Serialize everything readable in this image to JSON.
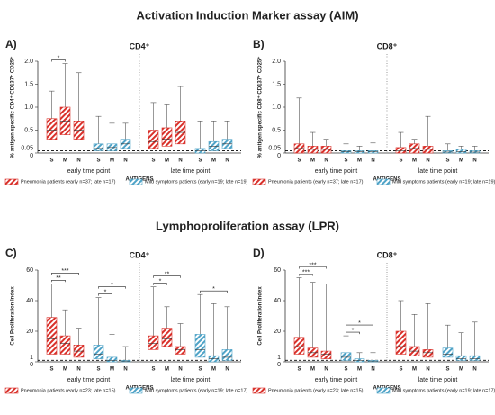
{
  "sections": [
    {
      "title": "Activation Induction Marker assay (AIM)"
    },
    {
      "title": "Lymphoproliferation assay (LPR)"
    }
  ],
  "chart_data": [
    {
      "type": "box",
      "panel": "A)",
      "title": "CD4⁺",
      "ylabel": "% antigen specific CD4⁺ CD137⁺ CD25⁺",
      "xlabel": "ANTIGENS",
      "time_points": [
        "early time point",
        "late time point"
      ],
      "categories": [
        "S",
        "M",
        "N"
      ],
      "ylim": [
        0,
        2
      ],
      "yticks": [
        0,
        {
          "value": 0.5,
          "label": "0.5"
        },
        {
          "value": 1,
          "label": "1.0"
        },
        {
          "value": 1.5,
          "label": "1.5"
        },
        {
          "value": 2,
          "label": "2.0"
        }
      ],
      "threshold": {
        "value": 0.05,
        "label": "0.05"
      },
      "series": [
        {
          "name": "Pneumonia patients (early n=37; late n=17)",
          "color": "#d9312b",
          "boxes": [
            [
              {
                "q1": 0.3,
                "median": 0.5,
                "q3": 0.75,
                "max": 1.35
              },
              {
                "q1": 0.4,
                "median": 0.7,
                "q3": 1.0,
                "max": 1.95
              },
              {
                "q1": 0.3,
                "median": 0.5,
                "q3": 0.7,
                "max": 1.75
              }
            ],
            [
              {
                "q1": 0.1,
                "median": 0.25,
                "q3": 0.5,
                "max": 1.1
              },
              {
                "q1": 0.15,
                "median": 0.3,
                "q3": 0.55,
                "max": 1.05
              },
              {
                "q1": 0.2,
                "median": 0.45,
                "q3": 0.7,
                "max": 1.45
              }
            ]
          ]
        },
        {
          "name": "Mild symptoms patients (early n=19; late n=19)",
          "color": "#4fa3c7",
          "boxes": [
            [
              {
                "q1": 0.05,
                "median": 0.1,
                "q3": 0.2,
                "max": 0.8
              },
              {
                "q1": 0.05,
                "median": 0.12,
                "q3": 0.2,
                "max": 0.65
              },
              {
                "q1": 0.1,
                "median": 0.2,
                "q3": 0.3,
                "max": 0.65
              }
            ],
            [
              {
                "q1": 0,
                "median": 0.05,
                "q3": 0.1,
                "max": 0.7
              },
              {
                "q1": 0.05,
                "median": 0.15,
                "q3": 0.25,
                "max": 0.7
              },
              {
                "q1": 0.1,
                "median": 0.2,
                "q3": 0.3,
                "max": 0.7
              }
            ]
          ]
        }
      ],
      "significance": [
        {
          "group": 0,
          "series": 0,
          "from": 0,
          "to": 1,
          "label": "*"
        }
      ]
    },
    {
      "type": "box",
      "panel": "B)",
      "title": "CD8⁺",
      "ylabel": "% antigen specific CD8⁺ CD137⁺ CD25⁺",
      "xlabel": "ANTIGENS",
      "time_points": [
        "early time point",
        "late time point"
      ],
      "categories": [
        "S",
        "M",
        "N"
      ],
      "ylim": [
        0,
        2
      ],
      "yticks": [
        0,
        {
          "value": 0.5,
          "label": "0.5"
        },
        {
          "value": 1,
          "label": "1.0"
        },
        {
          "value": 1.5,
          "label": "1.5"
        },
        {
          "value": 2,
          "label": "2.0"
        }
      ],
      "threshold": {
        "value": 0.05,
        "label": "0.05"
      },
      "series": [
        {
          "name": "Pneumonia patients (early n=37; late n=17)",
          "color": "#d9312b",
          "boxes": [
            [
              {
                "q1": 0,
                "median": 0.1,
                "q3": 0.2,
                "max": 1.2
              },
              {
                "q1": 0,
                "median": 0.08,
                "q3": 0.15,
                "max": 0.45
              },
              {
                "q1": 0,
                "median": 0.08,
                "q3": 0.15,
                "max": 0.3
              }
            ],
            [
              {
                "q1": 0,
                "median": 0.05,
                "q3": 0.12,
                "max": 0.45
              },
              {
                "q1": 0,
                "median": 0.1,
                "q3": 0.2,
                "max": 0.3
              },
              {
                "q1": 0,
                "median": 0.08,
                "q3": 0.15,
                "max": 0.8
              }
            ]
          ]
        },
        {
          "name": "Mild symptoms patients (early n=19; late n=19)",
          "color": "#4fa3c7",
          "boxes": [
            [
              {
                "q1": 0,
                "median": 0.03,
                "q3": 0.05,
                "max": 0.2
              },
              {
                "q1": 0,
                "median": 0.03,
                "q3": 0.05,
                "max": 0.15
              },
              {
                "q1": 0,
                "median": 0.03,
                "q3": 0.05,
                "max": 0.22
              }
            ],
            [
              {
                "q1": 0,
                "median": 0.02,
                "q3": 0.05,
                "max": 0.2
              },
              {
                "q1": 0,
                "median": 0.03,
                "q3": 0.08,
                "max": 0.15
              },
              {
                "q1": 0,
                "median": 0.02,
                "q3": 0.05,
                "max": 0.15
              }
            ]
          ]
        }
      ],
      "significance": []
    },
    {
      "type": "box",
      "panel": "C)",
      "title": "CD4⁺",
      "ylabel": "Cell Proliferation Index",
      "xlabel": "ANTIGENS",
      "time_points": [
        "early time point",
        "late time point"
      ],
      "categories": [
        "S",
        "M",
        "N"
      ],
      "ylim": [
        0,
        60
      ],
      "yticks": [
        0,
        20,
        40,
        60
      ],
      "threshold": {
        "value": 1,
        "label": "1"
      },
      "series": [
        {
          "name": "Pneumonia patients (early n=23; late n=15)",
          "color": "#d9312b",
          "boxes": [
            [
              {
                "q1": 5,
                "median": 15,
                "q3": 29,
                "max": 51
              },
              {
                "q1": 5,
                "median": 12,
                "q3": 17,
                "max": 34
              },
              {
                "q1": 3,
                "median": 7,
                "q3": 11,
                "max": 22
              }
            ],
            [
              {
                "q1": 8,
                "median": 12,
                "q3": 17,
                "max": 49
              },
              {
                "q1": 10,
                "median": 15,
                "q3": 22,
                "max": 36
              },
              {
                "q1": 5,
                "median": 8,
                "q3": 10,
                "max": 25
              }
            ]
          ]
        },
        {
          "name": "Mild symptoms patients (early n=19; late n=17)",
          "color": "#4fa3c7",
          "boxes": [
            [
              {
                "q1": 2,
                "median": 5,
                "q3": 11,
                "max": 42
              },
              {
                "q1": 0,
                "median": 1,
                "q3": 3,
                "max": 18
              },
              {
                "q1": 0,
                "median": 0.5,
                "q3": 1,
                "max": 10
              }
            ],
            [
              {
                "q1": 3,
                "median": 8,
                "q3": 18,
                "max": 44
              },
              {
                "q1": 0,
                "median": 2,
                "q3": 4,
                "max": 38
              },
              {
                "q1": 1,
                "median": 3,
                "q3": 8,
                "max": 36
              }
            ]
          ]
        }
      ],
      "significance": [
        {
          "group": 0,
          "series": 0,
          "from": 0,
          "to": 1,
          "label": "**"
        },
        {
          "group": 0,
          "series": 0,
          "from": 0,
          "to": 2,
          "label": "***"
        },
        {
          "group": 0,
          "series": 1,
          "from": 0,
          "to": 1,
          "label": "*"
        },
        {
          "group": 0,
          "series": 1,
          "from": 0,
          "to": 2,
          "label": "*"
        },
        {
          "group": 1,
          "series": 0,
          "from": 0,
          "to": 1,
          "label": "*"
        },
        {
          "group": 1,
          "series": 0,
          "from": 0,
          "to": 2,
          "label": "**"
        },
        {
          "group": 1,
          "series": 1,
          "from": 0,
          "to": 2,
          "label": "*"
        }
      ]
    },
    {
      "type": "box",
      "panel": "D)",
      "title": "CD8⁺",
      "ylabel": "Cell Proliferation Index",
      "xlabel": "ANTIGENS",
      "time_points": [
        "early time point",
        "late time point"
      ],
      "categories": [
        "S",
        "M",
        "N"
      ],
      "ylim": [
        0,
        60
      ],
      "yticks": [
        0,
        20,
        40,
        60
      ],
      "threshold": {
        "value": 1,
        "label": "1"
      },
      "series": [
        {
          "name": "Pneumonia patients (early n=23; late n=15)",
          "color": "#d9312b",
          "boxes": [
            [
              {
                "q1": 5,
                "median": 10,
                "q3": 16,
                "max": 55
              },
              {
                "q1": 3,
                "median": 6,
                "q3": 9,
                "max": 52
              },
              {
                "q1": 2,
                "median": 5,
                "q3": 7,
                "max": 51
              }
            ],
            [
              {
                "q1": 5,
                "median": 10,
                "q3": 20,
                "max": 40
              },
              {
                "q1": 4,
                "median": 7,
                "q3": 10,
                "max": 31
              },
              {
                "q1": 3,
                "median": 6,
                "q3": 8,
                "max": 38
              }
            ]
          ]
        },
        {
          "name": "Mild symptoms patients (early n=19; late n=17)",
          "color": "#4fa3c7",
          "boxes": [
            [
              {
                "q1": 1,
                "median": 3,
                "q3": 6,
                "max": 17
              },
              {
                "q1": 0,
                "median": 1,
                "q3": 2,
                "max": 6
              },
              {
                "q1": 0,
                "median": 0.5,
                "q3": 1,
                "max": 6
              }
            ],
            [
              {
                "q1": 3,
                "median": 5,
                "q3": 9,
                "max": 24
              },
              {
                "q1": 1,
                "median": 2,
                "q3": 4,
                "max": 19
              },
              {
                "q1": 1,
                "median": 2,
                "q3": 4,
                "max": 26
              }
            ]
          ]
        }
      ],
      "significance": [
        {
          "group": 0,
          "series": 0,
          "from": 0,
          "to": 1,
          "label": "***"
        },
        {
          "group": 0,
          "series": 0,
          "from": 0,
          "to": 2,
          "label": "***"
        },
        {
          "group": 0,
          "series": 1,
          "from": 0,
          "to": 1,
          "label": "*"
        },
        {
          "group": 0,
          "series": 1,
          "from": 0,
          "to": 2,
          "label": "*"
        }
      ]
    }
  ]
}
